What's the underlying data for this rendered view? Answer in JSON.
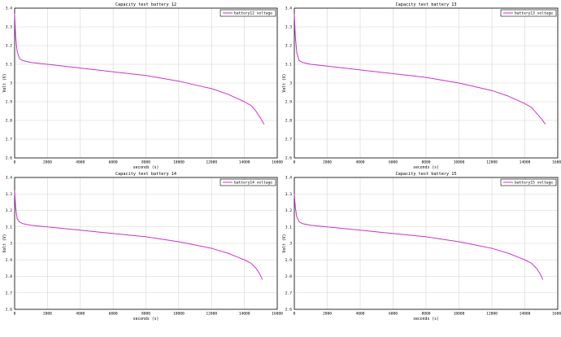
{
  "chart_data": [
    {
      "type": "line",
      "title": "Capacity test battery 12",
      "xlabel": "seconds (s)",
      "ylabel": "Volt (V)",
      "xlim": [
        0,
        16000
      ],
      "ylim": [
        2.6,
        3.4
      ],
      "xticks": [
        "0",
        "2000",
        "4000",
        "6000",
        "8000",
        "10000",
        "12000",
        "14000",
        "16000"
      ],
      "yticks": [
        "2.6",
        "2.7",
        "2.8",
        "2.9",
        "3",
        "3.1",
        "3.2",
        "3.3",
        "3.4"
      ],
      "grid": true,
      "legend_position": "top-right",
      "series": [
        {
          "name": "battery12 voltage",
          "color": "#cc33cc",
          "x": [
            0,
            60,
            150,
            300,
            500,
            1000,
            2000,
            4000,
            6000,
            8000,
            10000,
            11000,
            12000,
            13000,
            13500,
            14000,
            14400,
            14700,
            15000,
            15200
          ],
          "y": [
            3.37,
            3.25,
            3.17,
            3.13,
            3.12,
            3.11,
            3.1,
            3.08,
            3.06,
            3.04,
            3.01,
            2.99,
            2.97,
            2.94,
            2.92,
            2.9,
            2.88,
            2.85,
            2.81,
            2.78
          ]
        }
      ]
    },
    {
      "type": "line",
      "title": "Capacity test battery 13",
      "xlabel": "seconds (s)",
      "ylabel": "Volt (V)",
      "xlim": [
        0,
        16000
      ],
      "ylim": [
        2.6,
        3.4
      ],
      "xticks": [
        "0",
        "2000",
        "4000",
        "6000",
        "8000",
        "10000",
        "12000",
        "14000",
        "16000"
      ],
      "yticks": [
        "2.6",
        "2.7",
        "2.8",
        "2.9",
        "3",
        "3.1",
        "3.2",
        "3.3",
        "3.4"
      ],
      "grid": true,
      "legend_position": "top-right",
      "series": [
        {
          "name": "battery13 voltage",
          "color": "#cc33cc",
          "x": [
            0,
            60,
            150,
            300,
            500,
            1000,
            2000,
            4000,
            6000,
            8000,
            10000,
            11000,
            12000,
            13000,
            13500,
            14000,
            14400,
            14700,
            15000,
            15250
          ],
          "y": [
            3.37,
            3.25,
            3.16,
            3.12,
            3.11,
            3.1,
            3.09,
            3.07,
            3.05,
            3.03,
            3.0,
            2.98,
            2.96,
            2.93,
            2.91,
            2.89,
            2.87,
            2.84,
            2.81,
            2.78
          ]
        }
      ]
    },
    {
      "type": "line",
      "title": "Capacity test battery 14",
      "xlabel": "seconds (s)",
      "ylabel": "Volt (V)",
      "xlim": [
        0,
        16000
      ],
      "ylim": [
        2.6,
        3.4
      ],
      "xticks": [
        "0",
        "2000",
        "4000",
        "6000",
        "8000",
        "10000",
        "12000",
        "14000",
        "16000"
      ],
      "yticks": [
        "2.6",
        "2.7",
        "2.8",
        "2.9",
        "3",
        "3.1",
        "3.2",
        "3.3",
        "3.4"
      ],
      "grid": true,
      "legend_position": "top-right",
      "series": [
        {
          "name": "battery14 voltage",
          "color": "#cc33cc",
          "x": [
            0,
            60,
            150,
            300,
            500,
            1000,
            2000,
            4000,
            6000,
            8000,
            10000,
            11000,
            12000,
            13000,
            13500,
            14000,
            14400,
            14700,
            14900,
            15100
          ],
          "y": [
            3.32,
            3.22,
            3.15,
            3.13,
            3.12,
            3.11,
            3.1,
            3.08,
            3.06,
            3.04,
            3.01,
            2.99,
            2.97,
            2.94,
            2.92,
            2.9,
            2.88,
            2.85,
            2.82,
            2.78
          ]
        }
      ]
    },
    {
      "type": "line",
      "title": "Capacity test battery 15",
      "xlabel": "seconds (s)",
      "ylabel": "Volt (V)",
      "xlim": [
        0,
        16000
      ],
      "ylim": [
        2.6,
        3.4
      ],
      "xticks": [
        "0",
        "2000",
        "4000",
        "6000",
        "8000",
        "10000",
        "12000",
        "14000",
        "16000"
      ],
      "yticks": [
        "2.6",
        "2.7",
        "2.8",
        "2.9",
        "3",
        "3.1",
        "3.2",
        "3.3",
        "3.4"
      ],
      "grid": true,
      "legend_position": "top-right",
      "series": [
        {
          "name": "battery15 voltage",
          "color": "#cc33cc",
          "x": [
            0,
            60,
            150,
            300,
            500,
            1000,
            2000,
            4000,
            6000,
            8000,
            10000,
            11000,
            12000,
            13000,
            13500,
            14000,
            14400,
            14700,
            14900,
            15100
          ],
          "y": [
            3.3,
            3.22,
            3.16,
            3.13,
            3.12,
            3.11,
            3.1,
            3.08,
            3.06,
            3.04,
            3.01,
            2.99,
            2.97,
            2.94,
            2.92,
            2.9,
            2.88,
            2.85,
            2.82,
            2.78
          ]
        }
      ]
    }
  ]
}
